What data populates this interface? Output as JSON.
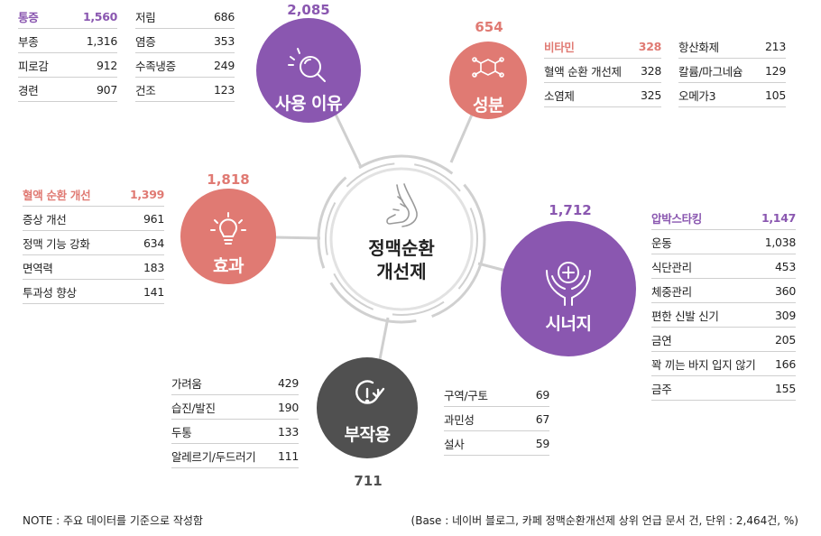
{
  "colors": {
    "purple": "#8a57b0",
    "coral": "#e07a73",
    "dark": "#505050",
    "ring": "#cfcfcf"
  },
  "center": {
    "line1": "정맥순환",
    "line2": "개선제",
    "icon": "leg-icon"
  },
  "nodes": {
    "usage": {
      "label": "사용 이유",
      "count": "2,085",
      "icon": "search-icon"
    },
    "ingredient": {
      "label": "성분",
      "count": "654",
      "icon": "molecule-icon"
    },
    "effect": {
      "label": "효과",
      "count": "1,818",
      "icon": "lightbulb-icon"
    },
    "synergy": {
      "label": "시너지",
      "count": "1,712",
      "icon": "hands-plus-icon"
    },
    "side_effect": {
      "label": "부작용",
      "count": "711",
      "icon": "alert-icon"
    }
  },
  "tables": {
    "usage_left": [
      {
        "k": "통증",
        "v": "1,560"
      },
      {
        "k": "부종",
        "v": "1,316"
      },
      {
        "k": "피로감",
        "v": "912"
      },
      {
        "k": "경련",
        "v": "907"
      }
    ],
    "usage_right": [
      {
        "k": "저림",
        "v": "686"
      },
      {
        "k": "염증",
        "v": "353"
      },
      {
        "k": "수족냉증",
        "v": "249"
      },
      {
        "k": "건조",
        "v": "123"
      }
    ],
    "ingredient_left": [
      {
        "k": "비타민",
        "v": "328"
      },
      {
        "k": "혈액 순환 개선제",
        "v": "328"
      },
      {
        "k": "소염제",
        "v": "325"
      }
    ],
    "ingredient_right": [
      {
        "k": "항산화제",
        "v": "213"
      },
      {
        "k": "칼륨/마그네슘",
        "v": "129"
      },
      {
        "k": "오메가3",
        "v": "105"
      }
    ],
    "effect": [
      {
        "k": "혈액 순환 개선",
        "v": "1,399"
      },
      {
        "k": "증상 개선",
        "v": "961"
      },
      {
        "k": "정맥 기능 강화",
        "v": "634"
      },
      {
        "k": "면역력",
        "v": "183"
      },
      {
        "k": "투과성 향상",
        "v": "141"
      }
    ],
    "synergy": [
      {
        "k": "압박스타킹",
        "v": "1,147"
      },
      {
        "k": "운동",
        "v": "1,038"
      },
      {
        "k": "식단관리",
        "v": "453"
      },
      {
        "k": "체중관리",
        "v": "360"
      },
      {
        "k": "편한 신발 신기",
        "v": "309"
      },
      {
        "k": "금연",
        "v": "205"
      },
      {
        "k": "꽉 끼는 바지 입지 않기",
        "v": "166"
      },
      {
        "k": "금주",
        "v": "155"
      }
    ],
    "side_left": [
      {
        "k": "가려움",
        "v": "429"
      },
      {
        "k": "습진/발진",
        "v": "190"
      },
      {
        "k": "두통",
        "v": "133"
      },
      {
        "k": "알레르기/두드러기",
        "v": "111"
      }
    ],
    "side_right": [
      {
        "k": "구역/구토",
        "v": "69"
      },
      {
        "k": "과민성",
        "v": "67"
      },
      {
        "k": "설사",
        "v": "59"
      }
    ]
  },
  "footer": {
    "note": "NOTE : 주요 데이터를 기준으로 작성함",
    "base": "(Base : 네이버 블로그, 카페 정맥순환개선제 상위 언급 문서 건, 단위 : 2,464건, %)"
  }
}
